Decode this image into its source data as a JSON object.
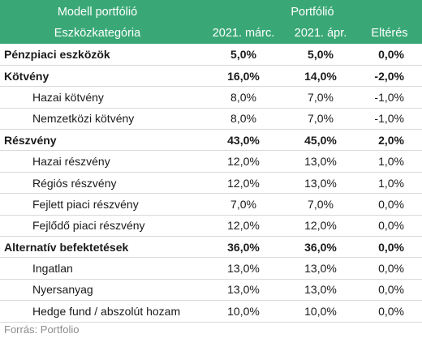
{
  "header": {
    "row1": {
      "label": "Modell portfólió",
      "group": "Portfólió"
    },
    "row2": {
      "label": "Eszközkategória",
      "col1": "2021. márc.",
      "col2": "2021. ápr.",
      "col3": "Eltérés"
    }
  },
  "rows": [
    {
      "name": "Pénzpiaci eszközök",
      "marc": "5,0%",
      "apr": "5,0%",
      "diff": "0,0%"
    },
    {
      "name": "Kötvény",
      "marc": "16,0%",
      "apr": "14,0%",
      "diff": "-2,0%"
    },
    {
      "name": "Hazai kötvény",
      "marc": "8,0%",
      "apr": "7,0%",
      "diff": "-1,0%"
    },
    {
      "name": "Nemzetközi kötvény",
      "marc": "8,0%",
      "apr": "7,0%",
      "diff": "-1,0%"
    },
    {
      "name": "Részvény",
      "marc": "43,0%",
      "apr": "45,0%",
      "diff": "2,0%"
    },
    {
      "name": "Hazai részvény",
      "marc": "12,0%",
      "apr": "13,0%",
      "diff": "1,0%"
    },
    {
      "name": "Régiós részvény",
      "marc": "12,0%",
      "apr": "13,0%",
      "diff": "1,0%"
    },
    {
      "name": "Fejlett piaci részvény",
      "marc": "7,0%",
      "apr": "7,0%",
      "diff": "0,0%"
    },
    {
      "name": "Fejlődő piaci részvény",
      "marc": "12,0%",
      "apr": "12,0%",
      "diff": "0,0%"
    },
    {
      "name": "Alternatív befektetések",
      "marc": "36,0%",
      "apr": "36,0%",
      "diff": "0,0%"
    },
    {
      "name": "Ingatlan",
      "marc": "13,0%",
      "apr": "13,0%",
      "diff": "0,0%"
    },
    {
      "name": "Nyersanyag",
      "marc": "13,0%",
      "apr": "13,0%",
      "diff": "0,0%"
    },
    {
      "name": "Hedge fund / abszolút hozam",
      "marc": "10,0%",
      "apr": "10,0%",
      "diff": "0,0%"
    }
  ],
  "source": "Forrás: Portfolio",
  "colors": {
    "header_bg": "#3aa876",
    "header_text": "#ffffff",
    "source_text": "#8c8c8c"
  }
}
